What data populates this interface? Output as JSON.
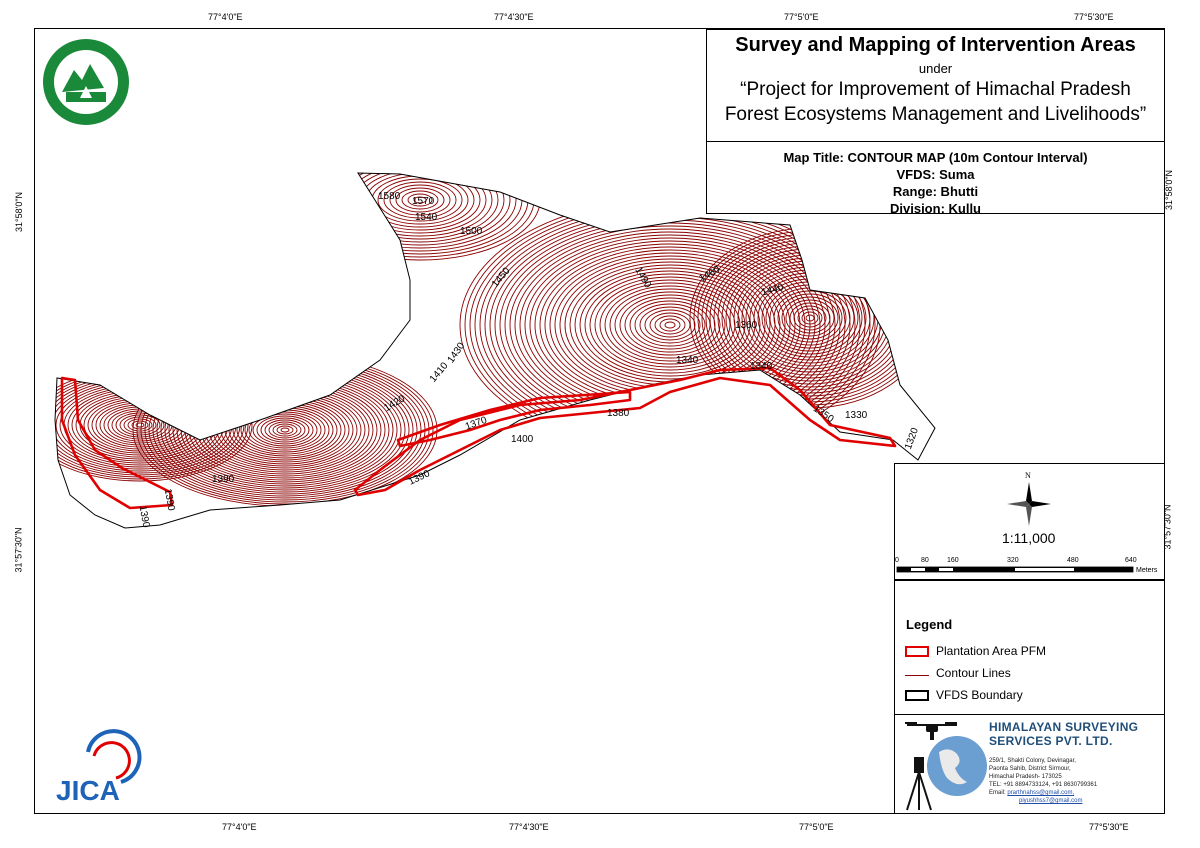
{
  "coordinates": {
    "top": [
      "77°4'0\"E",
      "77°4'30\"E",
      "77°5'0\"E",
      "77°5'30\"E"
    ],
    "bottom": [
      "77°4'0\"E",
      "77°4'30\"E",
      "77°5'0\"E",
      "77°5'30\"E"
    ],
    "left": [
      "31°58'0\"N",
      "31°57'30\"N"
    ],
    "right": [
      "31°58'0\"N",
      "31°57'30\"N"
    ]
  },
  "title": {
    "main": "Survey and Mapping of Intervention Areas",
    "under": "under",
    "project_line1": "“Project for Improvement of Himachal Pradesh",
    "project_line2": "Forest Ecosystems Management and Livelihoods”"
  },
  "map_info": {
    "map_title": "Map Title: CONTOUR MAP (10m Contour Interval)",
    "vfds": "VFDS: Suma",
    "range": "Range: Bhutti",
    "division": "Division: Kullu"
  },
  "contour_labels": [
    "1580",
    "1570",
    "1540",
    "1500",
    "1450",
    "1490",
    "1460",
    "1440",
    "1360",
    "1410",
    "1430",
    "1420",
    "1340",
    "1340",
    "1380",
    "1370",
    "1400",
    "1350",
    "1330",
    "1320",
    "1390",
    "1390",
    "1390",
    "1390"
  ],
  "north_arrow": {
    "label": "N",
    "icon": "compass-rose-icon"
  },
  "scale": {
    "ratio": "1:11,000",
    "ticks": [
      "0",
      "80",
      "160",
      "320",
      "480",
      "640"
    ],
    "unit": "Meters"
  },
  "legend": {
    "title": "Legend",
    "items": [
      {
        "label": "Plantation Area PFM",
        "symbol": "red-outline",
        "color": "#e00000"
      },
      {
        "label": "Contour Lines",
        "symbol": "dark-red-line",
        "color": "#8b0000"
      },
      {
        "label": "VFDS Boundary",
        "symbol": "black-outline",
        "color": "#000000"
      }
    ]
  },
  "company": {
    "name_line1": "HIMALAYAN SURVEYING",
    "name_line2": "SERVICES PVT. LTD.",
    "address_lines": [
      "259/1, Shakti Colony, Devinagar,",
      "Paonta Sahib, District Sirmour,",
      "Himachal Pradesh- 173025"
    ],
    "tel": "TEL: +91 8894733124, +91 8630799361",
    "email_prefix": "Email:",
    "email1": "prarthnahss@gmail.com,",
    "email2": "piyushhss7@gmail.com"
  },
  "logos": {
    "forest_dept": "forest-department-emblem",
    "jica": "JICA"
  },
  "colors": {
    "contour": "#8b0000",
    "plantation": "#e00000",
    "boundary": "#000000",
    "forest_green": "#1a8a3a",
    "company_blue": "#1f4e79",
    "jica_blue": "#1d63b8"
  }
}
